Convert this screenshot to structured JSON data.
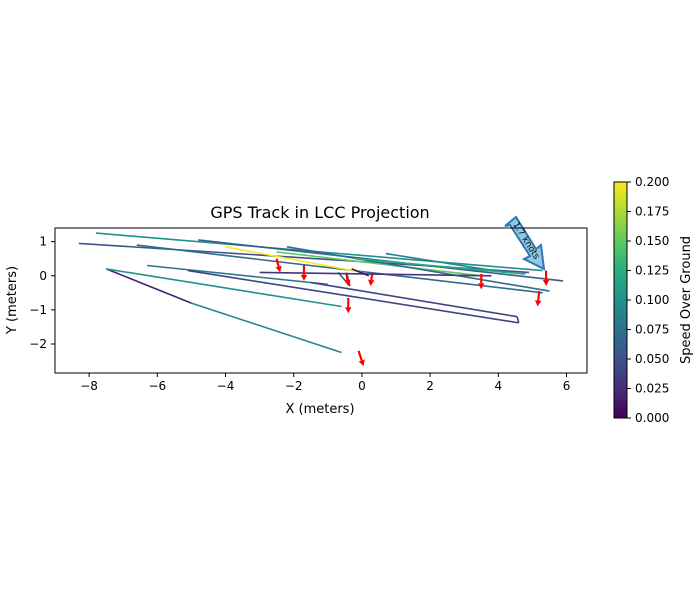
{
  "chart_data": {
    "type": "line",
    "title": "GPS Track in LCC Projection",
    "xlabel": "X (meters)",
    "ylabel": "Y (meters)",
    "xlim": [
      -9.0,
      6.6
    ],
    "ylim": [
      -2.85,
      1.4
    ],
    "x_ticks": [
      -8,
      -6,
      -4,
      -2,
      0,
      2,
      4,
      6
    ],
    "y_ticks": [
      -2,
      -1,
      0,
      1
    ],
    "grid": false,
    "colorbar": {
      "label": "Speed Over Ground",
      "range": [
        0.0,
        0.2
      ],
      "ticks": [
        "0.000",
        "0.025",
        "0.050",
        "0.075",
        "0.100",
        "0.125",
        "0.150",
        "0.175",
        "0.200"
      ],
      "colormap_stops": [
        "#440154",
        "#472d7b",
        "#3b528b",
        "#2c728e",
        "#21918c",
        "#28ae80",
        "#5ec962",
        "#addc30",
        "#fde725"
      ]
    },
    "annotation": {
      "text": "1.7 knots",
      "at": [
        5.4,
        0.1
      ]
    },
    "track_segments": [
      {
        "x": [
          -8.3,
          4.9
        ],
        "y": [
          0.95,
          0.1
        ],
        "speed": 0.05
      },
      {
        "x": [
          -7.8,
          5.3
        ],
        "y": [
          1.25,
          0.15
        ],
        "speed": 0.1
      },
      {
        "x": [
          -7.5,
          -5.0
        ],
        "y": [
          0.2,
          -0.8
        ],
        "speed": 0.02
      },
      {
        "x": [
          -5.0,
          -0.6
        ],
        "y": [
          -0.8,
          -2.25
        ],
        "speed": 0.09
      },
      {
        "x": [
          -7.5,
          -0.6
        ],
        "y": [
          0.2,
          -0.9
        ],
        "speed": 0.1
      },
      {
        "x": [
          -6.3,
          -1.0
        ],
        "y": [
          0.3,
          -0.25
        ],
        "speed": 0.08
      },
      {
        "x": [
          -5.1,
          4.6
        ],
        "y": [
          0.15,
          -1.38
        ],
        "speed": 0.04
      },
      {
        "x": [
          4.6,
          4.55
        ],
        "y": [
          -1.38,
          -1.2
        ],
        "speed": 0.04
      },
      {
        "x": [
          4.55,
          -1.5
        ],
        "y": [
          -1.2,
          -0.2
        ],
        "speed": 0.04
      },
      {
        "x": [
          -4.8,
          5.9
        ],
        "y": [
          1.05,
          -0.15
        ],
        "speed": 0.06
      },
      {
        "x": [
          -6.6,
          5.3
        ],
        "y": [
          0.9,
          -0.5
        ],
        "speed": 0.07
      },
      {
        "x": [
          -4.0,
          0.0
        ],
        "y": [
          0.85,
          0.1
        ],
        "speed": 0.2
      },
      {
        "x": [
          -2.5,
          3.5
        ],
        "y": [
          0.7,
          0.0
        ],
        "speed": 0.15
      },
      {
        "x": [
          -2.2,
          5.5
        ],
        "y": [
          0.85,
          -0.45
        ],
        "speed": 0.07
      },
      {
        "x": [
          0.7,
          4.2
        ],
        "y": [
          0.65,
          0.1
        ],
        "speed": 0.09
      },
      {
        "x": [
          -0.7,
          -0.35
        ],
        "y": [
          0.1,
          -0.3
        ],
        "speed": 0.06
      },
      {
        "x": [
          -0.35,
          -0.45
        ],
        "y": [
          -0.3,
          0.1
        ],
        "speed": 0.07
      },
      {
        "x": [
          -3.0,
          3.8
        ],
        "y": [
          0.1,
          0.0
        ],
        "speed": 0.03
      },
      {
        "x": [
          -0.3,
          0.2
        ],
        "y": [
          0.2,
          0.0
        ],
        "speed": 0.01
      },
      {
        "x": [
          -0.2,
          4.8
        ],
        "y": [
          0.5,
          0.05
        ],
        "speed": 0.12
      }
    ],
    "velocity_arrows": [
      {
        "x": -2.5,
        "y": 0.5,
        "dx": 0.1,
        "dy": -0.4
      },
      {
        "x": -1.7,
        "y": 0.3,
        "dx": 0.0,
        "dy": -0.45
      },
      {
        "x": -0.45,
        "y": 0.05,
        "dx": 0.05,
        "dy": -0.35
      },
      {
        "x": -0.4,
        "y": -0.65,
        "dx": 0.0,
        "dy": -0.45
      },
      {
        "x": 0.3,
        "y": 0.05,
        "dx": -0.05,
        "dy": -0.35
      },
      {
        "x": -0.1,
        "y": -2.2,
        "dx": 0.15,
        "dy": -0.45
      },
      {
        "x": 3.5,
        "y": 0.05,
        "dx": 0.0,
        "dy": -0.45
      },
      {
        "x": 5.4,
        "y": 0.15,
        "dx": 0.0,
        "dy": -0.45
      },
      {
        "x": 5.2,
        "y": -0.45,
        "dx": -0.05,
        "dy": -0.45
      }
    ]
  }
}
